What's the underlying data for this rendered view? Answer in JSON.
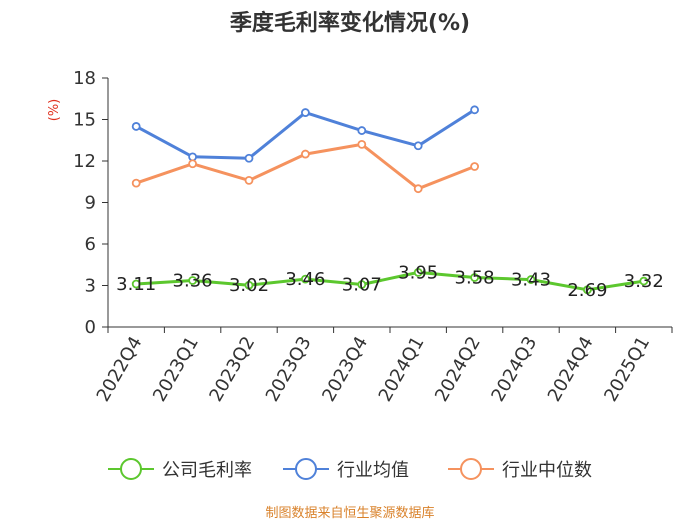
{
  "chart_data": {
    "type": "line",
    "title": "季度毛利率变化情况(%)",
    "ylabel": "(%)",
    "xlabel": "",
    "ylim": [
      0,
      18
    ],
    "yticks": [
      0,
      3,
      6,
      9,
      12,
      15,
      18
    ],
    "categories": [
      "2022Q4",
      "2023Q1",
      "2023Q2",
      "2023Q3",
      "2023Q4",
      "2024Q1",
      "2024Q2",
      "2024Q3",
      "2024Q4",
      "2025Q1"
    ],
    "grid": false,
    "legend_position": "bottom",
    "series": [
      {
        "name": "公司毛利率",
        "color": "#5cc72e",
        "values": [
          3.11,
          3.36,
          3.02,
          3.46,
          3.07,
          3.95,
          3.58,
          3.43,
          2.69,
          3.32
        ],
        "labels": [
          "3.11",
          "3.36",
          "3.02",
          "3.46",
          "3.07",
          "3.95",
          "3.58",
          "3.43",
          "2.69",
          "3.32"
        ]
      },
      {
        "name": "行业均值",
        "color": "#4f81d9",
        "values": [
          14.5,
          12.3,
          12.2,
          15.5,
          14.2,
          13.1,
          15.7,
          null,
          null,
          null
        ]
      },
      {
        "name": "行业中位数",
        "color": "#f5925e",
        "values": [
          10.4,
          11.8,
          10.6,
          12.5,
          13.2,
          10.0,
          11.6,
          null,
          null,
          null
        ]
      }
    ],
    "source": "制图数据来自恒生聚源数据库"
  }
}
